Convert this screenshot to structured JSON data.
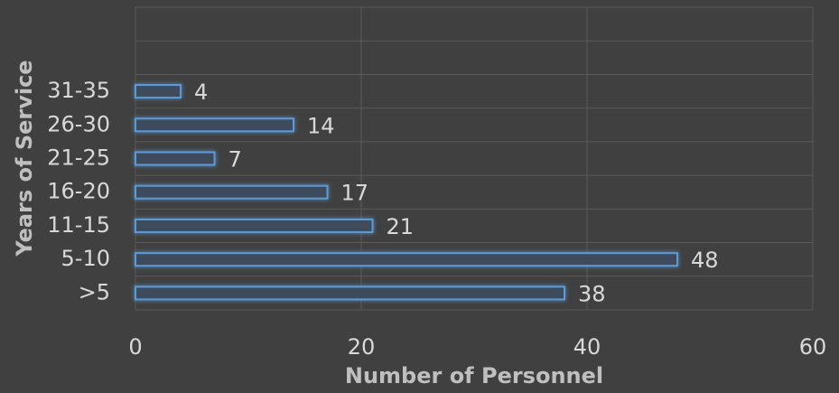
{
  "chart_data": {
    "type": "bar",
    "orientation": "horizontal",
    "x_label": "Number of Personnel",
    "y_label": "Years of Service",
    "categories": [
      ">5",
      "5-10",
      "11-15",
      "16-20",
      "21-25",
      "26-30",
      "31-35",
      null,
      null
    ],
    "values": [
      38,
      48,
      21,
      17,
      7,
      14,
      4,
      null,
      null
    ],
    "color": "#5b9bd5",
    "xlim": [
      0,
      60
    ],
    "xticks": [
      0,
      20,
      40,
      60
    ],
    "grid": true
  }
}
